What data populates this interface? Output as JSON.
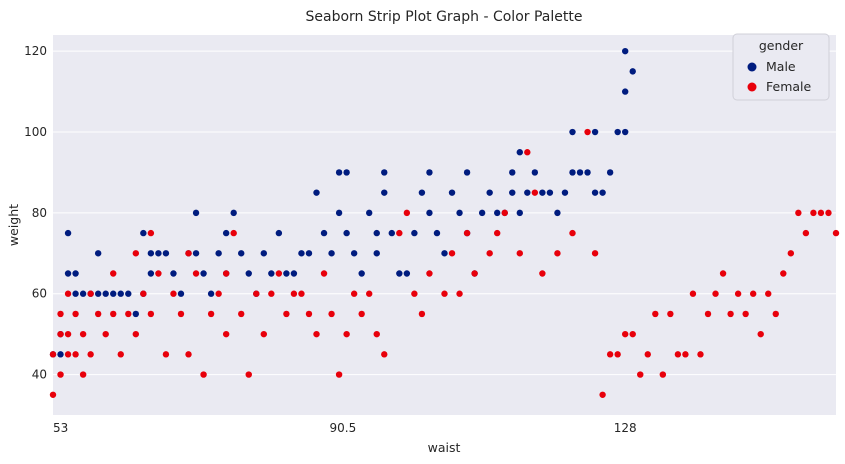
{
  "chart_data": {
    "type": "scatter",
    "title": "Seaborn Strip Plot Graph - Color Palette",
    "xlabel": "waist",
    "ylabel": "weight",
    "x_ticks": [
      "53",
      "90.5",
      "128"
    ],
    "y_ticks": [
      40,
      60,
      80,
      100,
      120
    ],
    "ylim": [
      30,
      124
    ],
    "grid": true,
    "legend": {
      "title": "gender",
      "position": "top-right"
    },
    "series": [
      {
        "name": "Male",
        "color": "#001c7f",
        "points": [
          [
            52,
            45
          ],
          [
            53,
            50
          ],
          [
            53,
            45
          ],
          [
            54,
            75
          ],
          [
            54,
            65
          ],
          [
            55,
            65
          ],
          [
            55,
            60
          ],
          [
            56,
            60
          ],
          [
            57,
            60
          ],
          [
            58,
            70
          ],
          [
            58,
            60
          ],
          [
            59,
            60
          ],
          [
            60,
            60
          ],
          [
            61,
            60
          ],
          [
            62,
            60
          ],
          [
            63,
            55
          ],
          [
            64,
            75
          ],
          [
            64,
            60
          ],
          [
            65,
            70
          ],
          [
            65,
            65
          ],
          [
            66,
            70
          ],
          [
            67,
            70
          ],
          [
            68,
            65
          ],
          [
            69,
            60
          ],
          [
            70,
            70
          ],
          [
            71,
            80
          ],
          [
            71,
            70
          ],
          [
            72,
            65
          ],
          [
            73,
            60
          ],
          [
            74,
            70
          ],
          [
            75,
            75
          ],
          [
            75,
            65
          ],
          [
            76,
            80
          ],
          [
            77,
            70
          ],
          [
            78,
            65
          ],
          [
            79,
            60
          ],
          [
            80,
            70
          ],
          [
            81,
            65
          ],
          [
            82,
            75
          ],
          [
            83,
            65
          ],
          [
            84,
            65
          ],
          [
            85,
            70
          ],
          [
            86,
            70
          ],
          [
            87,
            85
          ],
          [
            88,
            75
          ],
          [
            89,
            70
          ],
          [
            90,
            90
          ],
          [
            90,
            80
          ],
          [
            91,
            90
          ],
          [
            91,
            75
          ],
          [
            92,
            70
          ],
          [
            93,
            65
          ],
          [
            94,
            80
          ],
          [
            95,
            75
          ],
          [
            95,
            70
          ],
          [
            96,
            90
          ],
          [
            96,
            85
          ],
          [
            97,
            75
          ],
          [
            98,
            65
          ],
          [
            99,
            65
          ],
          [
            100,
            75
          ],
          [
            101,
            85
          ],
          [
            102,
            90
          ],
          [
            102,
            80
          ],
          [
            103,
            75
          ],
          [
            104,
            70
          ],
          [
            105,
            85
          ],
          [
            106,
            80
          ],
          [
            107,
            90
          ],
          [
            107,
            75
          ],
          [
            108,
            65
          ],
          [
            109,
            80
          ],
          [
            110,
            85
          ],
          [
            111,
            80
          ],
          [
            112,
            80
          ],
          [
            113,
            90
          ],
          [
            113,
            85
          ],
          [
            114,
            95
          ],
          [
            114,
            80
          ],
          [
            115,
            85
          ],
          [
            116,
            90
          ],
          [
            117,
            85
          ],
          [
            118,
            85
          ],
          [
            119,
            80
          ],
          [
            120,
            85
          ],
          [
            121,
            100
          ],
          [
            121,
            90
          ],
          [
            122,
            90
          ],
          [
            123,
            90
          ],
          [
            124,
            100
          ],
          [
            124,
            85
          ],
          [
            125,
            85
          ],
          [
            126,
            90
          ],
          [
            127,
            100
          ],
          [
            128,
            110
          ],
          [
            128,
            120
          ],
          [
            129,
            115
          ],
          [
            128,
            100
          ]
        ]
      },
      {
        "name": "Female",
        "color": "#e8000b",
        "points": [
          [
            52,
            35
          ],
          [
            52,
            45
          ],
          [
            53,
            50
          ],
          [
            53,
            40
          ],
          [
            53,
            55
          ],
          [
            54,
            60
          ],
          [
            54,
            50
          ],
          [
            54,
            45
          ],
          [
            55,
            55
          ],
          [
            55,
            45
          ],
          [
            56,
            50
          ],
          [
            56,
            40
          ],
          [
            57,
            60
          ],
          [
            57,
            45
          ],
          [
            58,
            55
          ],
          [
            59,
            50
          ],
          [
            60,
            65
          ],
          [
            60,
            55
          ],
          [
            61,
            45
          ],
          [
            62,
            55
          ],
          [
            63,
            70
          ],
          [
            63,
            50
          ],
          [
            64,
            60
          ],
          [
            65,
            75
          ],
          [
            65,
            55
          ],
          [
            66,
            65
          ],
          [
            67,
            45
          ],
          [
            68,
            60
          ],
          [
            69,
            55
          ],
          [
            70,
            70
          ],
          [
            70,
            45
          ],
          [
            71,
            65
          ],
          [
            72,
            40
          ],
          [
            73,
            55
          ],
          [
            74,
            60
          ],
          [
            75,
            65
          ],
          [
            75,
            50
          ],
          [
            76,
            75
          ],
          [
            77,
            55
          ],
          [
            78,
            40
          ],
          [
            79,
            60
          ],
          [
            80,
            50
          ],
          [
            81,
            60
          ],
          [
            82,
            65
          ],
          [
            83,
            55
          ],
          [
            84,
            60
          ],
          [
            85,
            60
          ],
          [
            86,
            55
          ],
          [
            87,
            50
          ],
          [
            88,
            65
          ],
          [
            89,
            55
          ],
          [
            90,
            40
          ],
          [
            91,
            50
          ],
          [
            92,
            60
          ],
          [
            93,
            55
          ],
          [
            94,
            60
          ],
          [
            95,
            50
          ],
          [
            96,
            45
          ],
          [
            98,
            75
          ],
          [
            99,
            80
          ],
          [
            100,
            60
          ],
          [
            101,
            55
          ],
          [
            102,
            65
          ],
          [
            104,
            60
          ],
          [
            105,
            70
          ],
          [
            106,
            60
          ],
          [
            107,
            75
          ],
          [
            108,
            65
          ],
          [
            110,
            70
          ],
          [
            111,
            75
          ],
          [
            112,
            80
          ],
          [
            114,
            70
          ],
          [
            115,
            95
          ],
          [
            116,
            85
          ],
          [
            117,
            65
          ],
          [
            119,
            70
          ],
          [
            121,
            75
          ],
          [
            123,
            100
          ],
          [
            124,
            70
          ],
          [
            125,
            35
          ],
          [
            126,
            45
          ],
          [
            127,
            45
          ],
          [
            128,
            50
          ],
          [
            129,
            50
          ],
          [
            130,
            40
          ],
          [
            131,
            45
          ],
          [
            132,
            55
          ],
          [
            133,
            40
          ],
          [
            134,
            55
          ],
          [
            135,
            45
          ],
          [
            136,
            45
          ],
          [
            137,
            60
          ],
          [
            138,
            45
          ],
          [
            139,
            55
          ],
          [
            140,
            60
          ],
          [
            141,
            65
          ],
          [
            142,
            55
          ],
          [
            143,
            60
          ],
          [
            144,
            55
          ],
          [
            145,
            60
          ],
          [
            146,
            50
          ],
          [
            147,
            60
          ],
          [
            148,
            55
          ],
          [
            149,
            65
          ],
          [
            150,
            70
          ],
          [
            151,
            80
          ],
          [
            152,
            75
          ],
          [
            153,
            80
          ],
          [
            154,
            80
          ],
          [
            155,
            80
          ],
          [
            156,
            75
          ]
        ]
      }
    ]
  }
}
